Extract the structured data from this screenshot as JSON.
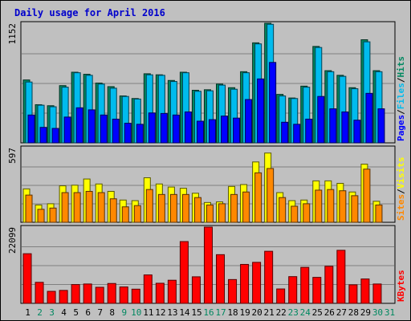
{
  "chart_data": {
    "type": "bar",
    "title": "Daily usage for April 2016",
    "categories": [
      "1",
      "2",
      "3",
      "4",
      "5",
      "6",
      "7",
      "8",
      "9",
      "10",
      "11",
      "12",
      "13",
      "14",
      "15",
      "16",
      "17",
      "18",
      "19",
      "20",
      "21",
      "22",
      "23",
      "24",
      "25",
      "26",
      "27",
      "28",
      "29",
      "30",
      "31"
    ],
    "weekend_days": [
      "2",
      "3",
      "9",
      "10",
      "16",
      "17",
      "23",
      "24",
      "30",
      "31"
    ],
    "panels": [
      {
        "name": "pages-files-hits",
        "axis_max_label": "1152",
        "ymax": 1152,
        "series": [
          {
            "name": "Hits",
            "color": "#008860",
            "values": [
              610,
              370,
              360,
              555,
              685,
              665,
              580,
              545,
              455,
              430,
              670,
              660,
              605,
              685,
              510,
              515,
              570,
              535,
              690,
              970,
              1160,
              470,
              435,
              550,
              935,
              700,
              655,
              535,
              1000,
              700
            ]
          },
          {
            "name": "Files",
            "color": "#00bbee",
            "values": [
              590,
              365,
              350,
              540,
              680,
              655,
              570,
              530,
              450,
              425,
              660,
              655,
              595,
              680,
              500,
              505,
              560,
              520,
              680,
              960,
              1150,
              455,
              430,
              540,
              925,
              690,
              645,
              525,
              980,
              690
            ]
          },
          {
            "name": "Pages",
            "color": "#0000ff",
            "values": [
              270,
              150,
              140,
              250,
              340,
              320,
              270,
              230,
              190,
              180,
              290,
              285,
              270,
              300,
              210,
              225,
              260,
              240,
              420,
              620,
              780,
              200,
              180,
              230,
              450,
              330,
              300,
              220,
              480,
              330
            ]
          }
        ],
        "legend": [
          "Pages",
          "/",
          "Files",
          "/",
          "Hits"
        ]
      },
      {
        "name": "sites-visits",
        "axis_max_label": "597",
        "ymax": 597,
        "series": [
          {
            "name": "Visits",
            "color": "#ffff00",
            "values": [
              270,
              140,
              150,
              295,
              300,
              350,
              310,
              250,
              180,
              175,
              360,
              310,
              285,
              275,
              235,
              160,
              165,
              290,
              305,
              488,
              560,
              240,
              175,
              180,
              335,
              335,
              315,
              245,
              470,
              170
            ]
          },
          {
            "name": "Sites",
            "color": "#ff8800",
            "values": [
              220,
              105,
              115,
              240,
              240,
              250,
              240,
              190,
              125,
              135,
              265,
              225,
              225,
              225,
              200,
              140,
              150,
              225,
              245,
              400,
              435,
              200,
              130,
              150,
              260,
              265,
              255,
              215,
              430,
              140
            ]
          }
        ],
        "legend": [
          "Sites",
          "/",
          "Visits"
        ]
      },
      {
        "name": "kbytes",
        "axis_max_label": "22099",
        "ymax": 22099,
        "series": [
          {
            "name": "KBytes",
            "color": "#ff0000",
            "values": [
              14540,
              6160,
              3520,
              3790,
              5510,
              5670,
              4710,
              5820,
              4810,
              4160,
              8330,
              5890,
              6770,
              18100,
              7780,
              22340,
              14260,
              6970,
              11410,
              12010,
              15250,
              4220,
              7830,
              10540,
              7610,
              10860,
              15540,
              5430,
              7140,
              5670
            ]
          }
        ],
        "legend": [
          "KBytes"
        ]
      }
    ]
  }
}
